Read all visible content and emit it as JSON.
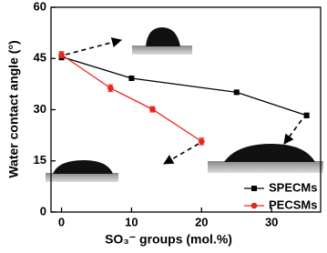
{
  "chart_data": {
    "type": "line",
    "x_label": "SO₃⁻ groups (mol.%)",
    "y_label": "Water contact angle (°)",
    "xlim": [
      -1.5,
      37
    ],
    "ylim": [
      0,
      60
    ],
    "xticks": [
      0,
      10,
      20,
      30
    ],
    "yticks": [
      0,
      15,
      30,
      45,
      60
    ],
    "legend": "lower right",
    "series": [
      {
        "name": "SPECMs",
        "color": "#000000",
        "x": [
          0,
          10,
          25,
          35
        ],
        "values": [
          45.5,
          39.2,
          35.1,
          28.3
        ],
        "errors": [
          0.9,
          0.5,
          0.6,
          0.7
        ]
      },
      {
        "name": "PECSMs",
        "color": "#e8251f",
        "x": [
          0,
          7,
          13,
          20
        ],
        "values": [
          46.1,
          36.3,
          30.1,
          20.7
        ],
        "errors": [
          0.9,
          1.0,
          0.8,
          1.0
        ]
      }
    ]
  }
}
